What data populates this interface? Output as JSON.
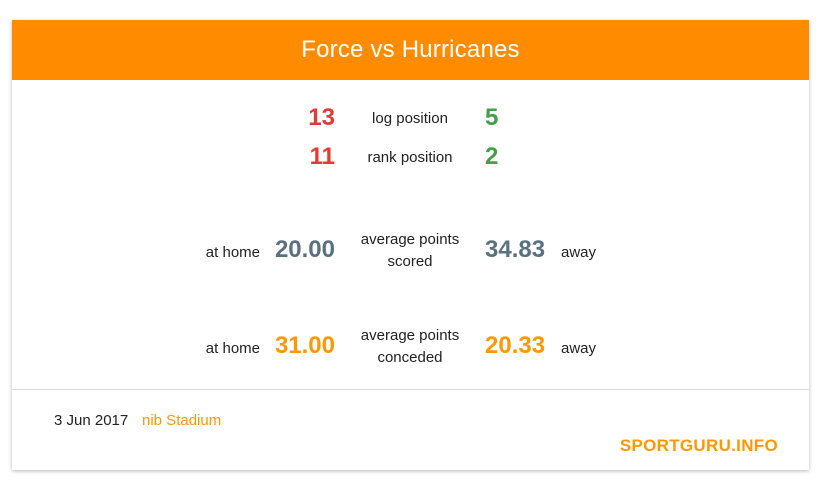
{
  "header": {
    "title": "Force vs Hurricanes"
  },
  "log": {
    "home": "13",
    "label": "log position",
    "away": "5"
  },
  "rank": {
    "home": "11",
    "label": "rank position",
    "away": "2"
  },
  "scored": {
    "home_prefix": "at home",
    "home_value": "20.00",
    "label_line1": "average points",
    "label_line2": "scored",
    "away_value": "34.83",
    "away_suffix": "away"
  },
  "conceded": {
    "home_prefix": "at home",
    "home_value": "31.00",
    "label_line1": "average points",
    "label_line2": "conceded",
    "away_value": "20.33",
    "away_suffix": "away"
  },
  "footer": {
    "date": "3 Jun 2017",
    "venue": "nib Stadium",
    "brand": "SPORTGURU.INFO"
  },
  "colors": {
    "header": "#ff8c00",
    "home_rank": "#e53935",
    "away_rank": "#43a047",
    "scored": "#5a7182",
    "conceded": "#ff9800"
  }
}
